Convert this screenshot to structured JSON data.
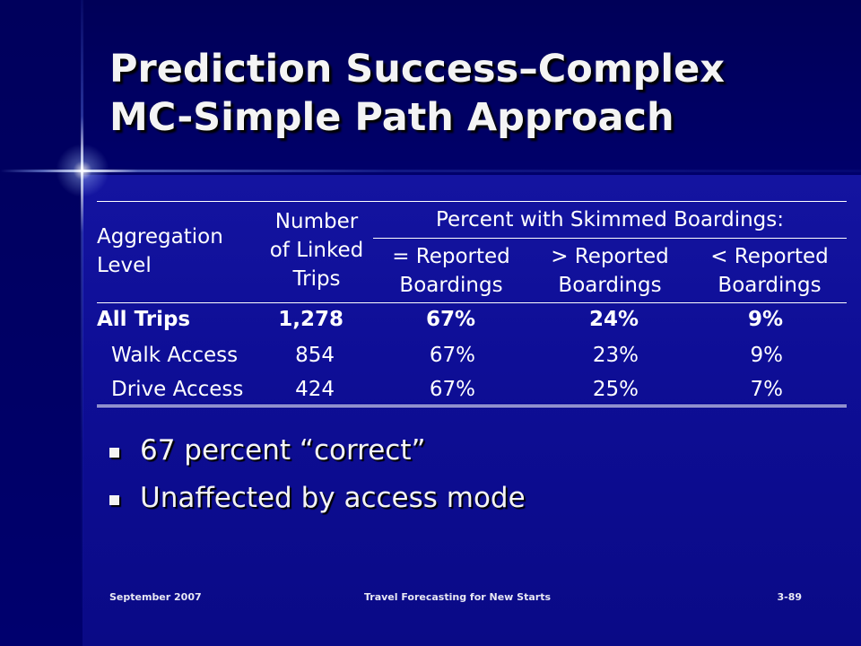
{
  "slide": {
    "title_lines": [
      "Prediction Success–Complex",
      "MC-Simple Path Approach"
    ]
  },
  "table": {
    "headers": {
      "col1": [
        "Aggregation",
        "Level"
      ],
      "col2": [
        "Number",
        "of Linked",
        "Trips"
      ],
      "group": "Percent with Skimmed Boardings:",
      "col3": [
        "= Reported",
        "Boardings"
      ],
      "col4": [
        "> Reported",
        "Boardings"
      ],
      "col5": [
        "< Reported",
        "Boardings"
      ]
    },
    "rows": [
      {
        "label": "All Trips",
        "trips": "1,278",
        "equal": "67%",
        "greater": "24%",
        "less": "9%"
      },
      {
        "label": "Walk Access",
        "trips": "854",
        "equal": "67%",
        "greater": "23%",
        "less": "9%"
      },
      {
        "label": "Drive Access",
        "trips": "424",
        "equal": "67%",
        "greater": "25%",
        "less": "7%"
      }
    ]
  },
  "bullets": [
    "67 percent “correct”",
    "Unaffected by access mode"
  ],
  "footer": {
    "date": "September  2007",
    "course": "Travel Forecasting for New Starts",
    "page": "3-89"
  },
  "colors": {
    "background": "#0a0a7a",
    "text": "#ffffff",
    "title_shadow": "#000000"
  }
}
